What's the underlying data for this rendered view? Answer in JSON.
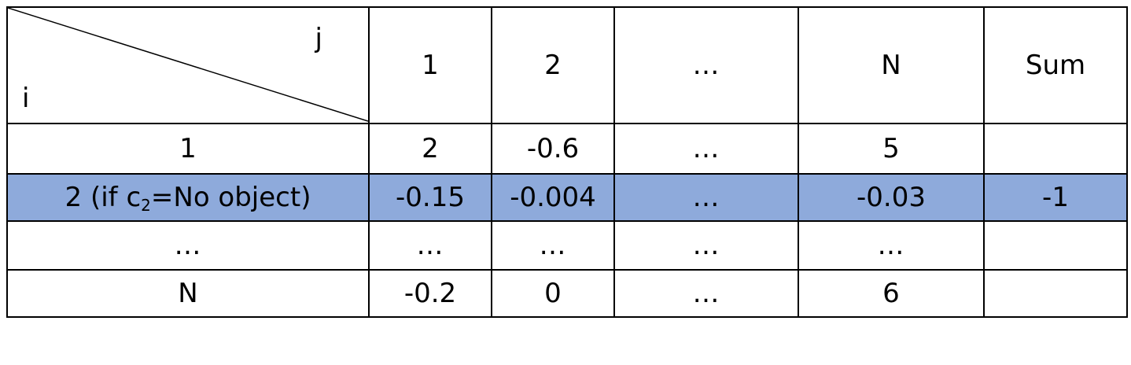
{
  "table": {
    "corner": {
      "col_axis": "j",
      "row_axis": "i"
    },
    "header": [
      "1",
      "2",
      "…",
      "N",
      "Sum"
    ],
    "rows": [
      {
        "label": "1",
        "cells": [
          "2",
          "-0.6",
          "…",
          "5",
          ""
        ]
      },
      {
        "label_pre": "2 (if c",
        "label_sub": "2",
        "label_post": "=No object)",
        "cells": [
          "-0.15",
          "-0.004",
          "…",
          "-0.03",
          "-1"
        ],
        "highlight": true
      },
      {
        "label": "…",
        "cells": [
          "…",
          "…",
          "…",
          "…",
          ""
        ]
      },
      {
        "label": "N",
        "cells": [
          "-0.2",
          "0",
          "…",
          "6",
          ""
        ]
      }
    ],
    "highlight_color": "#8eaadb"
  }
}
